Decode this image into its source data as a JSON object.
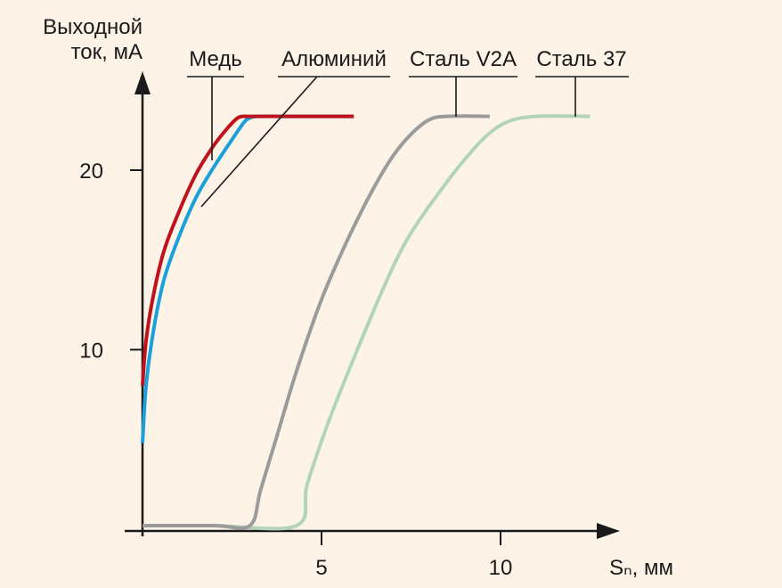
{
  "chart_data": {
    "type": "line",
    "ylabel": [
      "Выходной",
      "ток, мА"
    ],
    "xlabel": "Sₙ, мм",
    "xlim": [
      0,
      13.3
    ],
    "ylim": [
      0,
      25.5
    ],
    "xticks": [
      5,
      10
    ],
    "yticks": [
      10,
      20
    ],
    "grid": false,
    "legend": "top",
    "series": [
      {
        "name": "Медь",
        "color": "#c0121c",
        "x": [
          0,
          0.1,
          0.3,
          0.6,
          1.0,
          1.5,
          2.0,
          2.4,
          2.65,
          2.8,
          3.0,
          4.0,
          5.0,
          5.9
        ],
        "y": [
          8,
          10.5,
          13.0,
          15.5,
          17.6,
          19.8,
          21.4,
          22.4,
          22.9,
          23.0,
          23.0,
          23.0,
          23.0,
          23.0
        ]
      },
      {
        "name": "Алюминий",
        "color": "#1aa0dc",
        "x": [
          0,
          0.1,
          0.3,
          0.6,
          1.0,
          1.5,
          2.0,
          2.5,
          2.85,
          3.0,
          3.2,
          4.0,
          5.0,
          5.9
        ],
        "y": [
          4.8,
          8.0,
          11.0,
          13.9,
          16.2,
          18.5,
          20.2,
          21.7,
          22.7,
          22.9,
          23.0,
          23.0,
          23.0,
          23.0
        ]
      },
      {
        "name": "Сталь V2A",
        "color": "#9b9b9b",
        "x": [
          0,
          2.0,
          3.0,
          3.3,
          3.8,
          4.3,
          5.0,
          5.7,
          6.4,
          7.0,
          7.5,
          8.0,
          8.5,
          9.7
        ],
        "y": [
          0.2,
          0.2,
          0.2,
          2.2,
          5.5,
          8.8,
          12.8,
          16.0,
          18.8,
          20.8,
          22.0,
          22.8,
          23.0,
          23.0
        ]
      },
      {
        "name": "Сталь 37",
        "color": "#b2d5b8",
        "x": [
          0,
          2.0,
          4.3,
          4.6,
          5.2,
          6.0,
          6.9,
          7.5,
          8.3,
          9.0,
          9.6,
          10.2,
          11.0,
          12.5
        ],
        "y": [
          0.2,
          0.2,
          0.2,
          2.5,
          6.0,
          10.0,
          14.2,
          16.5,
          18.8,
          20.6,
          21.9,
          22.7,
          23.0,
          23.0
        ]
      }
    ]
  }
}
